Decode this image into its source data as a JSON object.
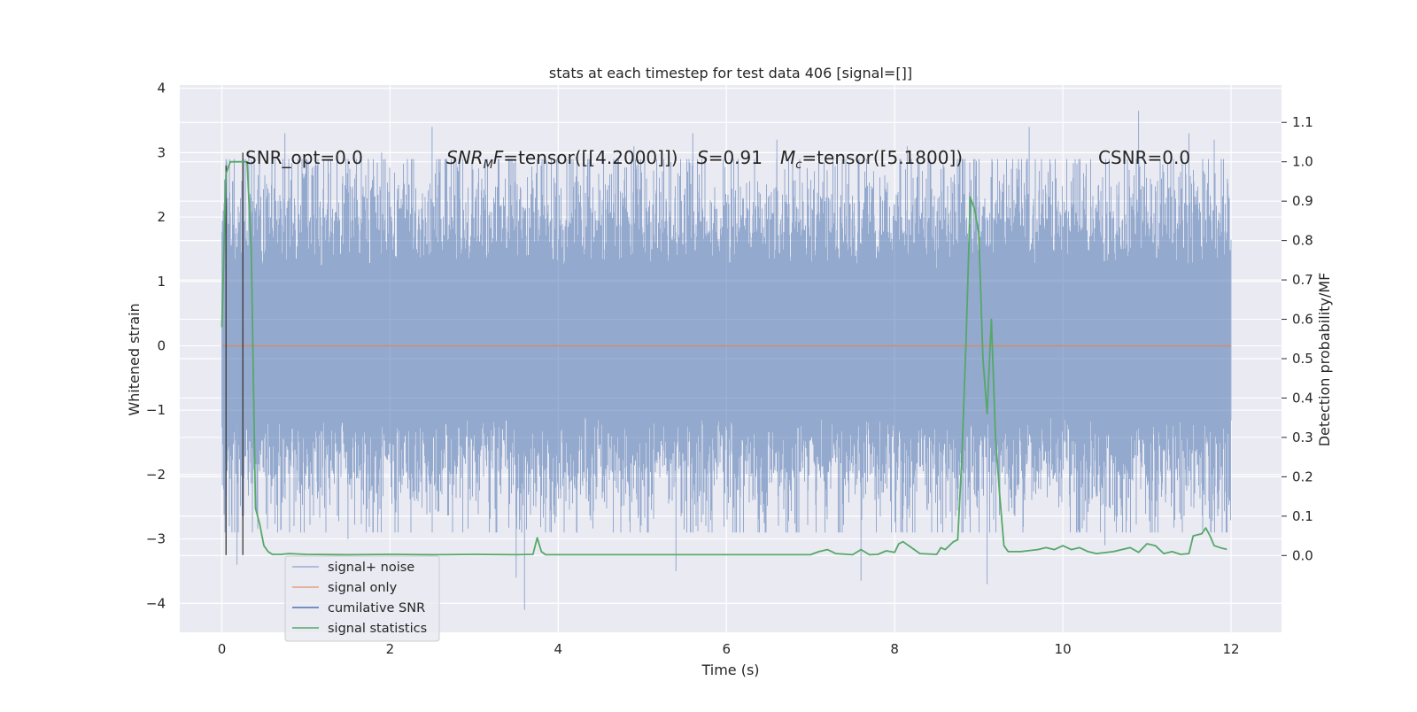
{
  "chart_data": {
    "type": "line",
    "title": "stats at each timestep for test data 406 [signal=[]]",
    "xlabel": "Time (s)",
    "ylabel": "Whitened strain",
    "ylabel_right": "Detection probability/MF",
    "xlim": [
      -0.5,
      12.6
    ],
    "ylim": [
      -4.45,
      4.05
    ],
    "ylim_right": [
      -0.195,
      1.195
    ],
    "grid": true,
    "x_ticks": [
      0,
      2,
      4,
      6,
      8,
      10,
      12
    ],
    "y_ticks": [
      -4,
      -3,
      -2,
      -1,
      0,
      1,
      2,
      3,
      4
    ],
    "y_right_ticks": [
      0.0,
      0.1,
      0.2,
      0.3,
      0.4,
      0.5,
      0.6,
      0.7,
      0.8,
      0.9,
      1.0,
      1.1
    ],
    "x_tick_labels": [
      "0",
      "2",
      "4",
      "6",
      "8",
      "10",
      "12"
    ],
    "y_tick_labels": [
      "−4",
      "−3",
      "−2",
      "−1",
      "0",
      "1",
      "2",
      "3",
      "4"
    ],
    "y_right_tick_labels": [
      "0.0",
      "0.1",
      "0.2",
      "0.3",
      "0.4",
      "0.5",
      "0.6",
      "0.7",
      "0.8",
      "0.9",
      "1.0",
      "1.1"
    ],
    "annotations": {
      "snr_opt": "SNR_opt=0.0",
      "snr_mf_name": "SNR",
      "snr_mf_sub": "M",
      "snr_mf_rest": "F",
      "snr_mf_value": "=tensor([[4.2000]])",
      "s_name": "S",
      "s_value": "=0.91",
      "mc_name": "M",
      "mc_sub": "c",
      "mc_value": "=tensor([5.1800])",
      "csnr": "CSNR=0.0"
    },
    "legend": {
      "placement": "lower-left",
      "entries": [
        {
          "label": "signal+ noise",
          "color": "#4c72b0",
          "alpha": 0.5
        },
        {
          "label": "signal only",
          "color": "#dd8452",
          "alpha": 0.7
        },
        {
          "label": "cumilative SNR",
          "color": "#4c72b0",
          "alpha": 1.0
        },
        {
          "label": "signal statistics",
          "color": "#55a868",
          "alpha": 1.0
        }
      ]
    },
    "series": [
      {
        "name": "signal+ noise",
        "axis": "left",
        "kind": "noise-band",
        "x_range": [
          0.0,
          12.0
        ],
        "std": 0.95,
        "color": "#4c72b0",
        "peak_values": [
          {
            "x": 0.05,
            "y": 2.9
          },
          {
            "x": 0.12,
            "y": -2.9
          },
          {
            "x": 0.18,
            "y": -3.4
          },
          {
            "x": 0.25,
            "y": 2.5
          },
          {
            "x": 0.32,
            "y": 3.0
          },
          {
            "x": 0.75,
            "y": 3.3
          },
          {
            "x": 1.5,
            "y": -3.0
          },
          {
            "x": 1.9,
            "y": 3.0
          },
          {
            "x": 2.5,
            "y": 3.4
          },
          {
            "x": 3.6,
            "y": -4.1
          },
          {
            "x": 3.5,
            "y": -3.6
          },
          {
            "x": 4.9,
            "y": 3.1
          },
          {
            "x": 5.6,
            "y": 3.3
          },
          {
            "x": 5.4,
            "y": -3.5
          },
          {
            "x": 6.6,
            "y": 3.2
          },
          {
            "x": 7.6,
            "y": -3.65
          },
          {
            "x": 8.15,
            "y": 3.1
          },
          {
            "x": 9.1,
            "y": -3.7
          },
          {
            "x": 9.6,
            "y": 3.4
          },
          {
            "x": 10.9,
            "y": 3.65
          },
          {
            "x": 10.5,
            "y": -3.1
          },
          {
            "x": 11.5,
            "y": 3.3
          },
          {
            "x": 11.8,
            "y": 3.2
          }
        ]
      },
      {
        "name": "signal only",
        "axis": "left",
        "color": "#dd8452",
        "x": [
          0,
          12
        ],
        "y": [
          0,
          0
        ]
      },
      {
        "name": "cumilative SNR",
        "axis": "left",
        "color": "#4c72b0",
        "x": [],
        "y": []
      },
      {
        "name": "signal statistics",
        "axis": "right",
        "color": "#55a868",
        "x": [
          0.0,
          0.05,
          0.1,
          0.15,
          0.2,
          0.25,
          0.3,
          0.35,
          0.4,
          0.45,
          0.5,
          0.55,
          0.6,
          0.7,
          0.8,
          1.0,
          1.5,
          2.0,
          2.5,
          3.0,
          3.5,
          3.7,
          3.75,
          3.8,
          3.85,
          4.0,
          5.0,
          6.0,
          6.5,
          7.0,
          7.1,
          7.2,
          7.3,
          7.5,
          7.6,
          7.7,
          7.8,
          7.9,
          8.0,
          8.05,
          8.1,
          8.2,
          8.3,
          8.5,
          8.55,
          8.6,
          8.7,
          8.75,
          8.8,
          8.85,
          8.9,
          8.95,
          9.0,
          9.05,
          9.1,
          9.15,
          9.2,
          9.25,
          9.3,
          9.35,
          9.4,
          9.5,
          9.7,
          9.8,
          9.9,
          10.0,
          10.1,
          10.2,
          10.3,
          10.4,
          10.6,
          10.8,
          10.9,
          11.0,
          11.1,
          11.2,
          11.3,
          11.4,
          11.5,
          11.55,
          11.65,
          11.7,
          11.75,
          11.8,
          11.9,
          11.95
        ],
        "y": [
          0.58,
          0.97,
          1.0,
          1.0,
          1.0,
          1.0,
          1.0,
          0.78,
          0.12,
          0.08,
          0.025,
          0.01,
          0.003,
          0.003,
          0.005,
          0.003,
          0.002,
          0.003,
          0.002,
          0.003,
          0.002,
          0.003,
          0.045,
          0.01,
          0.002,
          0.002,
          0.002,
          0.002,
          0.002,
          0.002,
          0.01,
          0.015,
          0.005,
          0.002,
          0.015,
          0.002,
          0.003,
          0.012,
          0.008,
          0.03,
          0.035,
          0.02,
          0.005,
          0.003,
          0.02,
          0.015,
          0.035,
          0.04,
          0.25,
          0.55,
          0.91,
          0.88,
          0.82,
          0.5,
          0.36,
          0.6,
          0.3,
          0.15,
          0.025,
          0.01,
          0.01,
          0.01,
          0.015,
          0.02,
          0.015,
          0.025,
          0.015,
          0.02,
          0.01,
          0.005,
          0.01,
          0.02,
          0.008,
          0.03,
          0.025,
          0.005,
          0.01,
          0.003,
          0.005,
          0.05,
          0.055,
          0.07,
          0.05,
          0.025,
          0.018,
          0.016
        ]
      }
    ],
    "vertical_markers": [
      {
        "x": 0.05,
        "y_top": 2.8,
        "y_bottom": -3.25
      },
      {
        "x": 0.25,
        "y_top": 3.0,
        "y_bottom": -3.25
      }
    ]
  }
}
